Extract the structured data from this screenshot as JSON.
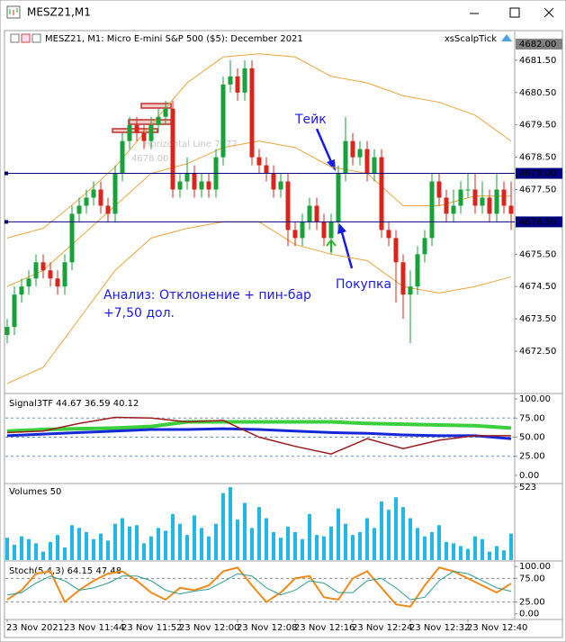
{
  "window": {
    "title": "MESZ21,M1"
  },
  "chart_data": {
    "type": "candlestick",
    "header": "MESZ21, M1:  Micro E-mini S&P 500 ($5): December 2021",
    "expert": "xsScalpTick",
    "colors": {
      "up": "#17a23a",
      "down": "#d8261c",
      "level": "#000080"
    },
    "open": [
      4673,
      4673.25,
      4674.25,
      4674.5,
      4674.75,
      4675.25,
      4675,
      4674.75,
      4674.5,
      4675.25,
      4676.75,
      4677,
      4677.25,
      4677.5,
      4677,
      4676.75,
      4678,
      4679,
      4679.5,
      4679.25,
      4679,
      4679.5,
      4679.75,
      4680,
      4677.5,
      4677.75,
      4678,
      4677.5,
      4677.75,
      4677.5,
      4678.5,
      4680.75,
      4681,
      4680.5,
      4681.25,
      4678.5,
      4678.25,
      4678,
      4677.5,
      4677.75,
      4676.25,
      4676,
      4676.5,
      4677,
      4676.5,
      4676,
      4676.5,
      4678,
      4679,
      4678.5,
      4678.75,
      4678,
      4678.5,
      4676.25,
      4676,
      4675.25,
      4674.25,
      4674.5,
      4675.5,
      4676,
      4677.75,
      4677.25,
      4676.75,
      4677,
      4677.5,
      4677.5,
      4677,
      4677.25,
      4676.75,
      4677.5,
      4677
    ],
    "high": [
      4673.5,
      4674.5,
      4674.75,
      4675,
      4675.5,
      4675.5,
      4675.25,
      4675,
      4675.5,
      4677,
      4677.25,
      4677.5,
      4677.75,
      4677.75,
      4677.25,
      4678.25,
      4679.25,
      4679.75,
      4679.75,
      4679.5,
      4679.75,
      4680,
      4680.25,
      4680.25,
      4678,
      4678.5,
      4678.25,
      4678,
      4678,
      4678.75,
      4681,
      4681.5,
      4681.25,
      4681.5,
      4681.5,
      4678.75,
      4678.5,
      4678.25,
      4678,
      4678,
      4676.5,
      4676.75,
      4677.25,
      4677.25,
      4676.75,
      4676.75,
      4678.25,
      4679.75,
      4679.25,
      4679,
      4679,
      4678.75,
      4678.75,
      4676.5,
      4676.25,
      4675.5,
      4675,
      4675.75,
      4676.25,
      4678,
      4678,
      4677.5,
      4677.5,
      4677.75,
      4678,
      4678,
      4677.75,
      4677.5,
      4678,
      4677.75,
      4677.75
    ],
    "low": [
      4672.75,
      4673,
      4674,
      4674.25,
      4674.5,
      4674.75,
      4674.5,
      4674.25,
      4674.25,
      4675,
      4676.5,
      4676.75,
      4677,
      4676.75,
      4676.5,
      4676.5,
      4677.75,
      4678.75,
      4679,
      4678.75,
      4678.75,
      4679.25,
      4679.5,
      4677.25,
      4677.25,
      4677.5,
      4677.25,
      4677.25,
      4677.25,
      4677.25,
      4678.25,
      4680.5,
      4680.25,
      4680.25,
      4678.25,
      4678,
      4677.75,
      4677.25,
      4677.25,
      4675.75,
      4675.75,
      4675.75,
      4676.25,
      4676.25,
      4675.75,
      4675.5,
      4676.25,
      4677.75,
      4678.25,
      4678.25,
      4677.75,
      4677.75,
      4676,
      4675.75,
      4674,
      4673.5,
      4672.75,
      4674.25,
      4675.25,
      4675.75,
      4677,
      4676.5,
      4676.5,
      4676.75,
      4677.25,
      4676.75,
      4676.75,
      4676.5,
      4676.5,
      4676.75,
      4676.25
    ],
    "close": [
      4673.25,
      4674.25,
      4674.5,
      4674.75,
      4675.25,
      4675,
      4674.75,
      4674.5,
      4675.25,
      4676.75,
      4677,
      4677.25,
      4677.5,
      4677,
      4676.75,
      4678,
      4679,
      4679.5,
      4679.25,
      4679,
      4679.5,
      4679.75,
      4680,
      4677.5,
      4677.75,
      4678,
      4677.5,
      4677.75,
      4677.5,
      4678.5,
      4680.75,
      4681,
      4680.5,
      4681.25,
      4678.5,
      4678.25,
      4678,
      4677.5,
      4677.75,
      4676.25,
      4676,
      4676.5,
      4677,
      4676.5,
      4676,
      4676.5,
      4678,
      4679,
      4678.5,
      4678.75,
      4678,
      4678.5,
      4676.25,
      4676,
      4675.25,
      4674.25,
      4674.5,
      4675.5,
      4676,
      4677.75,
      4677.25,
      4676.75,
      4677,
      4677.5,
      4677.5,
      4677,
      4677.25,
      4676.75,
      4677.5,
      4677,
      4676.75
    ],
    "ylim": [
      4671.22,
      4682.36
    ],
    "yticks": [
      {
        "value": 4681.5,
        "label": "4681.50"
      },
      {
        "value": 4680.5,
        "label": "4680.50"
      },
      {
        "value": 4679.5,
        "label": "4679.50"
      },
      {
        "value": 4678.5,
        "label": "4678.50"
      },
      {
        "value": 4677.5,
        "label": "4677.50"
      },
      {
        "value": 4675.5,
        "label": "4675.50"
      },
      {
        "value": 4674.5,
        "label": "4674.50"
      },
      {
        "value": 4673.5,
        "label": "4673.50"
      },
      {
        "value": 4672.5,
        "label": "4672.50"
      }
    ],
    "levels": [
      {
        "value": 4682,
        "label": "4682.00",
        "color": "#808080",
        "line": false
      },
      {
        "value": 4678,
        "label": "4678.00",
        "color": "#000080",
        "line": true
      },
      {
        "value": 4676.5,
        "label": "4676.50",
        "color": "#000080",
        "line": true
      }
    ],
    "bands": {
      "color": "#eba43a",
      "x": [
        0,
        5,
        10,
        15,
        20,
        25,
        30,
        35,
        40,
        45,
        50,
        55,
        60,
        65,
        70
      ],
      "upper": [
        4676,
        4676.3,
        4677.2,
        4678.2,
        4679.5,
        4680.8,
        4681.6,
        4681.7,
        4681.6,
        4681,
        4680.8,
        4680.4,
        4680.2,
        4679.8,
        4679
      ],
      "middle": [
        4674.5,
        4675,
        4676,
        4677,
        4678,
        4678.3,
        4678.8,
        4679,
        4678.8,
        4678.2,
        4678,
        4677,
        4677,
        4677.3,
        4677.3
      ],
      "lower": [
        4671.5,
        4672,
        4673.5,
        4675,
        4676,
        4676.3,
        4676.5,
        4676.5,
        4675.8,
        4675.5,
        4675.3,
        4674.5,
        4674.3,
        4674.5,
        4674.8
      ]
    },
    "annotations": {
      "take": "Тейк",
      "buy": "Покупка",
      "analysis": "Анализ: Отклонение + пин-бар",
      "profit": "+7,50 дол.",
      "hline_name": "Horizontal Line 7977",
      "hline_price": "4678.00"
    },
    "time_axis": {
      "labels": [
        "23 Nov 2021",
        "23 Nov 11:44",
        "23 Nov 11:52",
        "23 Nov 12:00",
        "23 Nov 12:08",
        "23 Nov 12:16",
        "23 Nov 12:24",
        "23 Nov 12:32",
        "23 Nov 12:40"
      ],
      "at": [
        0,
        8,
        16,
        24,
        32,
        40,
        48,
        56,
        64
      ]
    }
  },
  "signal": {
    "header": "Signal3TF 44.67 36.59 40.12",
    "ylim": [
      -9.5,
      106
    ],
    "yticks": [
      {
        "value": 100,
        "label": "100.00"
      },
      {
        "value": 75,
        "label": "75.00"
      },
      {
        "value": 50,
        "label": "50.00"
      },
      {
        "value": 25,
        "label": "25.00"
      },
      {
        "value": 0,
        "label": "0.00"
      }
    ],
    "levels": [
      75,
      50,
      25
    ],
    "x": [
      0,
      5,
      10,
      15,
      20,
      25,
      30,
      35,
      40,
      45,
      50,
      55,
      60,
      65,
      70
    ],
    "lines": [
      {
        "color": "#3ccf3c",
        "width": 4,
        "values": [
          58,
          60,
          61,
          62,
          64,
          70,
          70,
          70,
          70,
          70,
          68,
          67,
          66,
          65,
          62
        ]
      },
      {
        "color": "#1428d8",
        "width": 3,
        "values": [
          52,
          54,
          56,
          58,
          60,
          60,
          61,
          60,
          58,
          56,
          55,
          53,
          52,
          52,
          48
        ]
      },
      {
        "color": "#9b1b1b",
        "width": 1.5,
        "values": [
          56,
          58,
          68,
          76,
          75,
          70,
          72,
          50,
          38,
          28,
          48,
          35,
          46,
          52,
          52
        ]
      }
    ]
  },
  "volume": {
    "header": "Volumes 50",
    "color": "#22b8e6",
    "ylim": [
      0,
      542
    ],
    "yticks": [
      523
    ],
    "values": [
      160,
      110,
      170,
      150,
      120,
      60,
      130,
      180,
      90,
      250,
      230,
      200,
      150,
      190,
      140,
      260,
      300,
      240,
      250,
      120,
      170,
      230,
      210,
      330,
      260,
      180,
      320,
      230,
      170,
      260,
      480,
      523,
      290,
      410,
      230,
      380,
      300,
      200,
      160,
      240,
      200,
      150,
      330,
      180,
      170,
      240,
      370,
      260,
      180,
      200,
      300,
      230,
      420,
      360,
      450,
      380,
      300,
      230,
      170,
      200,
      250,
      130,
      120,
      100,
      80,
      170,
      150,
      60,
      100,
      70,
      190
    ]
  },
  "stoch": {
    "header": "Stoch(5,4,3) 64.15 47.48",
    "ylim": [
      -12,
      110
    ],
    "yticks": [
      {
        "value": 100,
        "label": "100.00"
      },
      {
        "value": 75,
        "label": "75.00"
      },
      {
        "value": 25,
        "label": "25.00"
      },
      {
        "value": 0,
        "label": "0.00"
      }
    ],
    "levels": [
      75,
      25
    ],
    "x": [
      0,
      2,
      4,
      6,
      8,
      10,
      12,
      14,
      16,
      18,
      20,
      22,
      24,
      26,
      28,
      30,
      32,
      34,
      36,
      38,
      40,
      42,
      44,
      46,
      48,
      50,
      52,
      54,
      56,
      58,
      60,
      62,
      64,
      66,
      68,
      70
    ],
    "lines": [
      {
        "color": "#f08a1a",
        "width": 2,
        "values": [
          30,
          50,
          85,
          90,
          25,
          50,
          70,
          85,
          90,
          70,
          45,
          30,
          55,
          50,
          60,
          90,
          98,
          60,
          25,
          45,
          75,
          80,
          35,
          30,
          75,
          90,
          55,
          20,
          15,
          60,
          98,
          90,
          75,
          60,
          45,
          64.15
        ]
      },
      {
        "color": "#2a9d8f",
        "width": 1,
        "values": [
          40,
          45,
          65,
          80,
          70,
          50,
          55,
          65,
          80,
          80,
          70,
          50,
          42,
          48,
          52,
          68,
          85,
          80,
          55,
          40,
          50,
          70,
          65,
          45,
          45,
          70,
          75,
          55,
          30,
          35,
          70,
          90,
          85,
          70,
          55,
          47.48
        ]
      }
    ]
  }
}
